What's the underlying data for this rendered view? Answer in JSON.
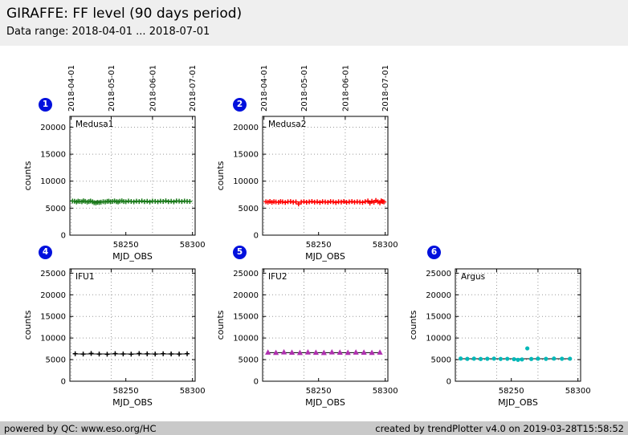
{
  "header": {
    "title": "GIRAFFE: FF level (90 days period)",
    "subtitle": "Data range: 2018-04-01 ... 2018-07-01"
  },
  "footer": {
    "left": "powered by QC: www.eso.org/HC",
    "right": "created by trendPlotter v4.0 on 2019-03-28T15:58:52"
  },
  "badge_color": "#0010dd",
  "axis": {
    "xlabel": "MJD_OBS",
    "ylabel": "counts",
    "xlim": [
      58208,
      58302
    ],
    "xticks": [
      {
        "v": 58250,
        "label": "58250"
      },
      {
        "v": 58300,
        "label": "58300"
      }
    ],
    "date_ticks": [
      {
        "v": 58209,
        "label": "2018-04-01"
      },
      {
        "v": 58239,
        "label": "2018-05-01"
      },
      {
        "v": 58270,
        "label": "2018-06-01"
      },
      {
        "v": 58300,
        "label": "2018-07-01"
      }
    ]
  },
  "chart_data": [
    {
      "id": "medusa1",
      "badge": "1",
      "label": "Medusa1",
      "type": "scatter",
      "marker": "plus",
      "color": "#1a7a1a",
      "xlabel": "MJD_OBS",
      "ylabel": "counts",
      "ylim": [
        0,
        22000
      ],
      "yticks": [
        0,
        5000,
        10000,
        15000,
        20000
      ],
      "show_date_axis": true,
      "trend_line": 6240,
      "x": [
        58210,
        58211.5,
        58213,
        58214.2,
        58215.5,
        58217,
        58218.2,
        58219.5,
        58221,
        58222.3,
        58223.5,
        58225,
        58226.2,
        58227.5,
        58228.7,
        58230,
        58231.3,
        58233,
        58234.5,
        58236,
        58237.2,
        58238.5,
        58240,
        58241.5,
        58243,
        58244.2,
        58245.5,
        58247,
        58248.5,
        58250,
        58252,
        58254,
        58256,
        58258,
        58260,
        58262,
        58264,
        58266,
        58268,
        58270,
        58272,
        58274,
        58276,
        58278,
        58280,
        58282,
        58284,
        58286,
        58288,
        58290,
        58292,
        58294,
        58296,
        58298
      ],
      "y": [
        6320,
        6280,
        6150,
        6300,
        6240,
        6180,
        6350,
        6270,
        6130,
        6230,
        6310,
        6190,
        6020,
        5960,
        6080,
        6040,
        6120,
        6210,
        6150,
        6260,
        6300,
        6180,
        6240,
        6330,
        6200,
        6150,
        6280,
        6360,
        6220,
        6190,
        6310,
        6250,
        6170,
        6290,
        6230,
        6340,
        6200,
        6280,
        6150,
        6320,
        6260,
        6190,
        6300,
        6240,
        6350,
        6210,
        6280,
        6170,
        6330,
        6290,
        6220,
        6310,
        6260,
        6240
      ]
    },
    {
      "id": "medusa2",
      "badge": "2",
      "label": "Medusa2",
      "type": "scatter",
      "marker": "plus",
      "color": "#ff0000",
      "xlabel": "MJD_OBS",
      "ylabel": "counts",
      "ylim": [
        0,
        22000
      ],
      "yticks": [
        0,
        5000,
        10000,
        15000,
        20000
      ],
      "show_date_axis": true,
      "trend_line": 6150,
      "x": [
        58210.5,
        58212,
        58213.5,
        58215,
        58216.5,
        58218,
        58220,
        58221.5,
        58223,
        58225,
        58227,
        58229,
        58231,
        58233,
        58235,
        58237,
        58239,
        58241,
        58243,
        58245,
        58247,
        58249,
        58251,
        58253,
        58255,
        58257,
        58259,
        58261,
        58263,
        58265,
        58267,
        58269,
        58271,
        58273,
        58275,
        58277,
        58279,
        58281,
        58283,
        58285,
        58287,
        58288.5,
        58290,
        58291.5,
        58293,
        58294.5,
        58296,
        58297,
        58298,
        58299
      ],
      "y": [
        6180,
        6120,
        6250,
        6080,
        6200,
        6150,
        6100,
        6220,
        6160,
        6050,
        6190,
        6230,
        6110,
        6170,
        5780,
        6140,
        6200,
        6090,
        6160,
        6240,
        6120,
        6180,
        6060,
        6210,
        6150,
        6100,
        6230,
        6170,
        6040,
        6190,
        6130,
        6250,
        6080,
        6160,
        6220,
        6110,
        6180,
        6140,
        6060,
        6200,
        6330,
        5950,
        6280,
        6100,
        6420,
        6180,
        5980,
        6350,
        6220,
        6150
      ]
    },
    {
      "id": "ifu1",
      "badge": "4",
      "label": "IFU1",
      "type": "scatter",
      "marker": "plus",
      "color": "#000000",
      "xlabel": "MJD_OBS",
      "ylabel": "counts",
      "ylim": [
        0,
        26000
      ],
      "yticks": [
        0,
        5000,
        10000,
        15000,
        20000,
        25000
      ],
      "show_date_axis": false,
      "trend_line": 6320,
      "x": [
        58212,
        58218,
        58224,
        58230,
        58236,
        58242,
        58248,
        58254,
        58260,
        58266,
        58272,
        58278,
        58284,
        58290,
        58296
      ],
      "y": [
        6350,
        6280,
        6420,
        6300,
        6250,
        6380,
        6310,
        6270,
        6400,
        6330,
        6290,
        6360,
        6320,
        6280,
        6350
      ]
    },
    {
      "id": "ifu2",
      "badge": "5",
      "label": "IFU2",
      "type": "scatter",
      "marker": "triangle",
      "color": "#b030b0",
      "xlabel": "MJD_OBS",
      "ylabel": "counts",
      "ylim": [
        0,
        26000
      ],
      "yticks": [
        0,
        5000,
        10000,
        15000,
        20000,
        25000
      ],
      "show_date_axis": false,
      "trend_line": 6620,
      "x": [
        58212,
        58218,
        58224,
        58230,
        58236,
        58242,
        58248,
        58254,
        58260,
        58266,
        58272,
        58278,
        58284,
        58290,
        58296
      ],
      "y": [
        6650,
        6580,
        6700,
        6620,
        6560,
        6680,
        6610,
        6570,
        6690,
        6640,
        6590,
        6660,
        6630,
        6580,
        6650
      ]
    },
    {
      "id": "argus",
      "badge": "6",
      "label": "Argus",
      "type": "scatter",
      "marker": "circle",
      "color": "#00b8b8",
      "xlabel": "MJD_OBS",
      "ylabel": "counts",
      "ylim": [
        0,
        26000
      ],
      "yticks": [
        0,
        5000,
        10000,
        15000,
        20000,
        25000
      ],
      "show_date_axis": false,
      "trend_line": 5190,
      "x": [
        58212,
        58217,
        58222,
        58227,
        58232,
        58237,
        58242,
        58247,
        58252,
        58255,
        58258,
        58262,
        58265,
        58270,
        58276,
        58282,
        58288,
        58294
      ],
      "y": [
        5250,
        5180,
        5220,
        5150,
        5200,
        5230,
        5160,
        5190,
        5100,
        4950,
        5050,
        7600,
        5150,
        5220,
        5180,
        5240,
        5200,
        5210
      ]
    }
  ]
}
